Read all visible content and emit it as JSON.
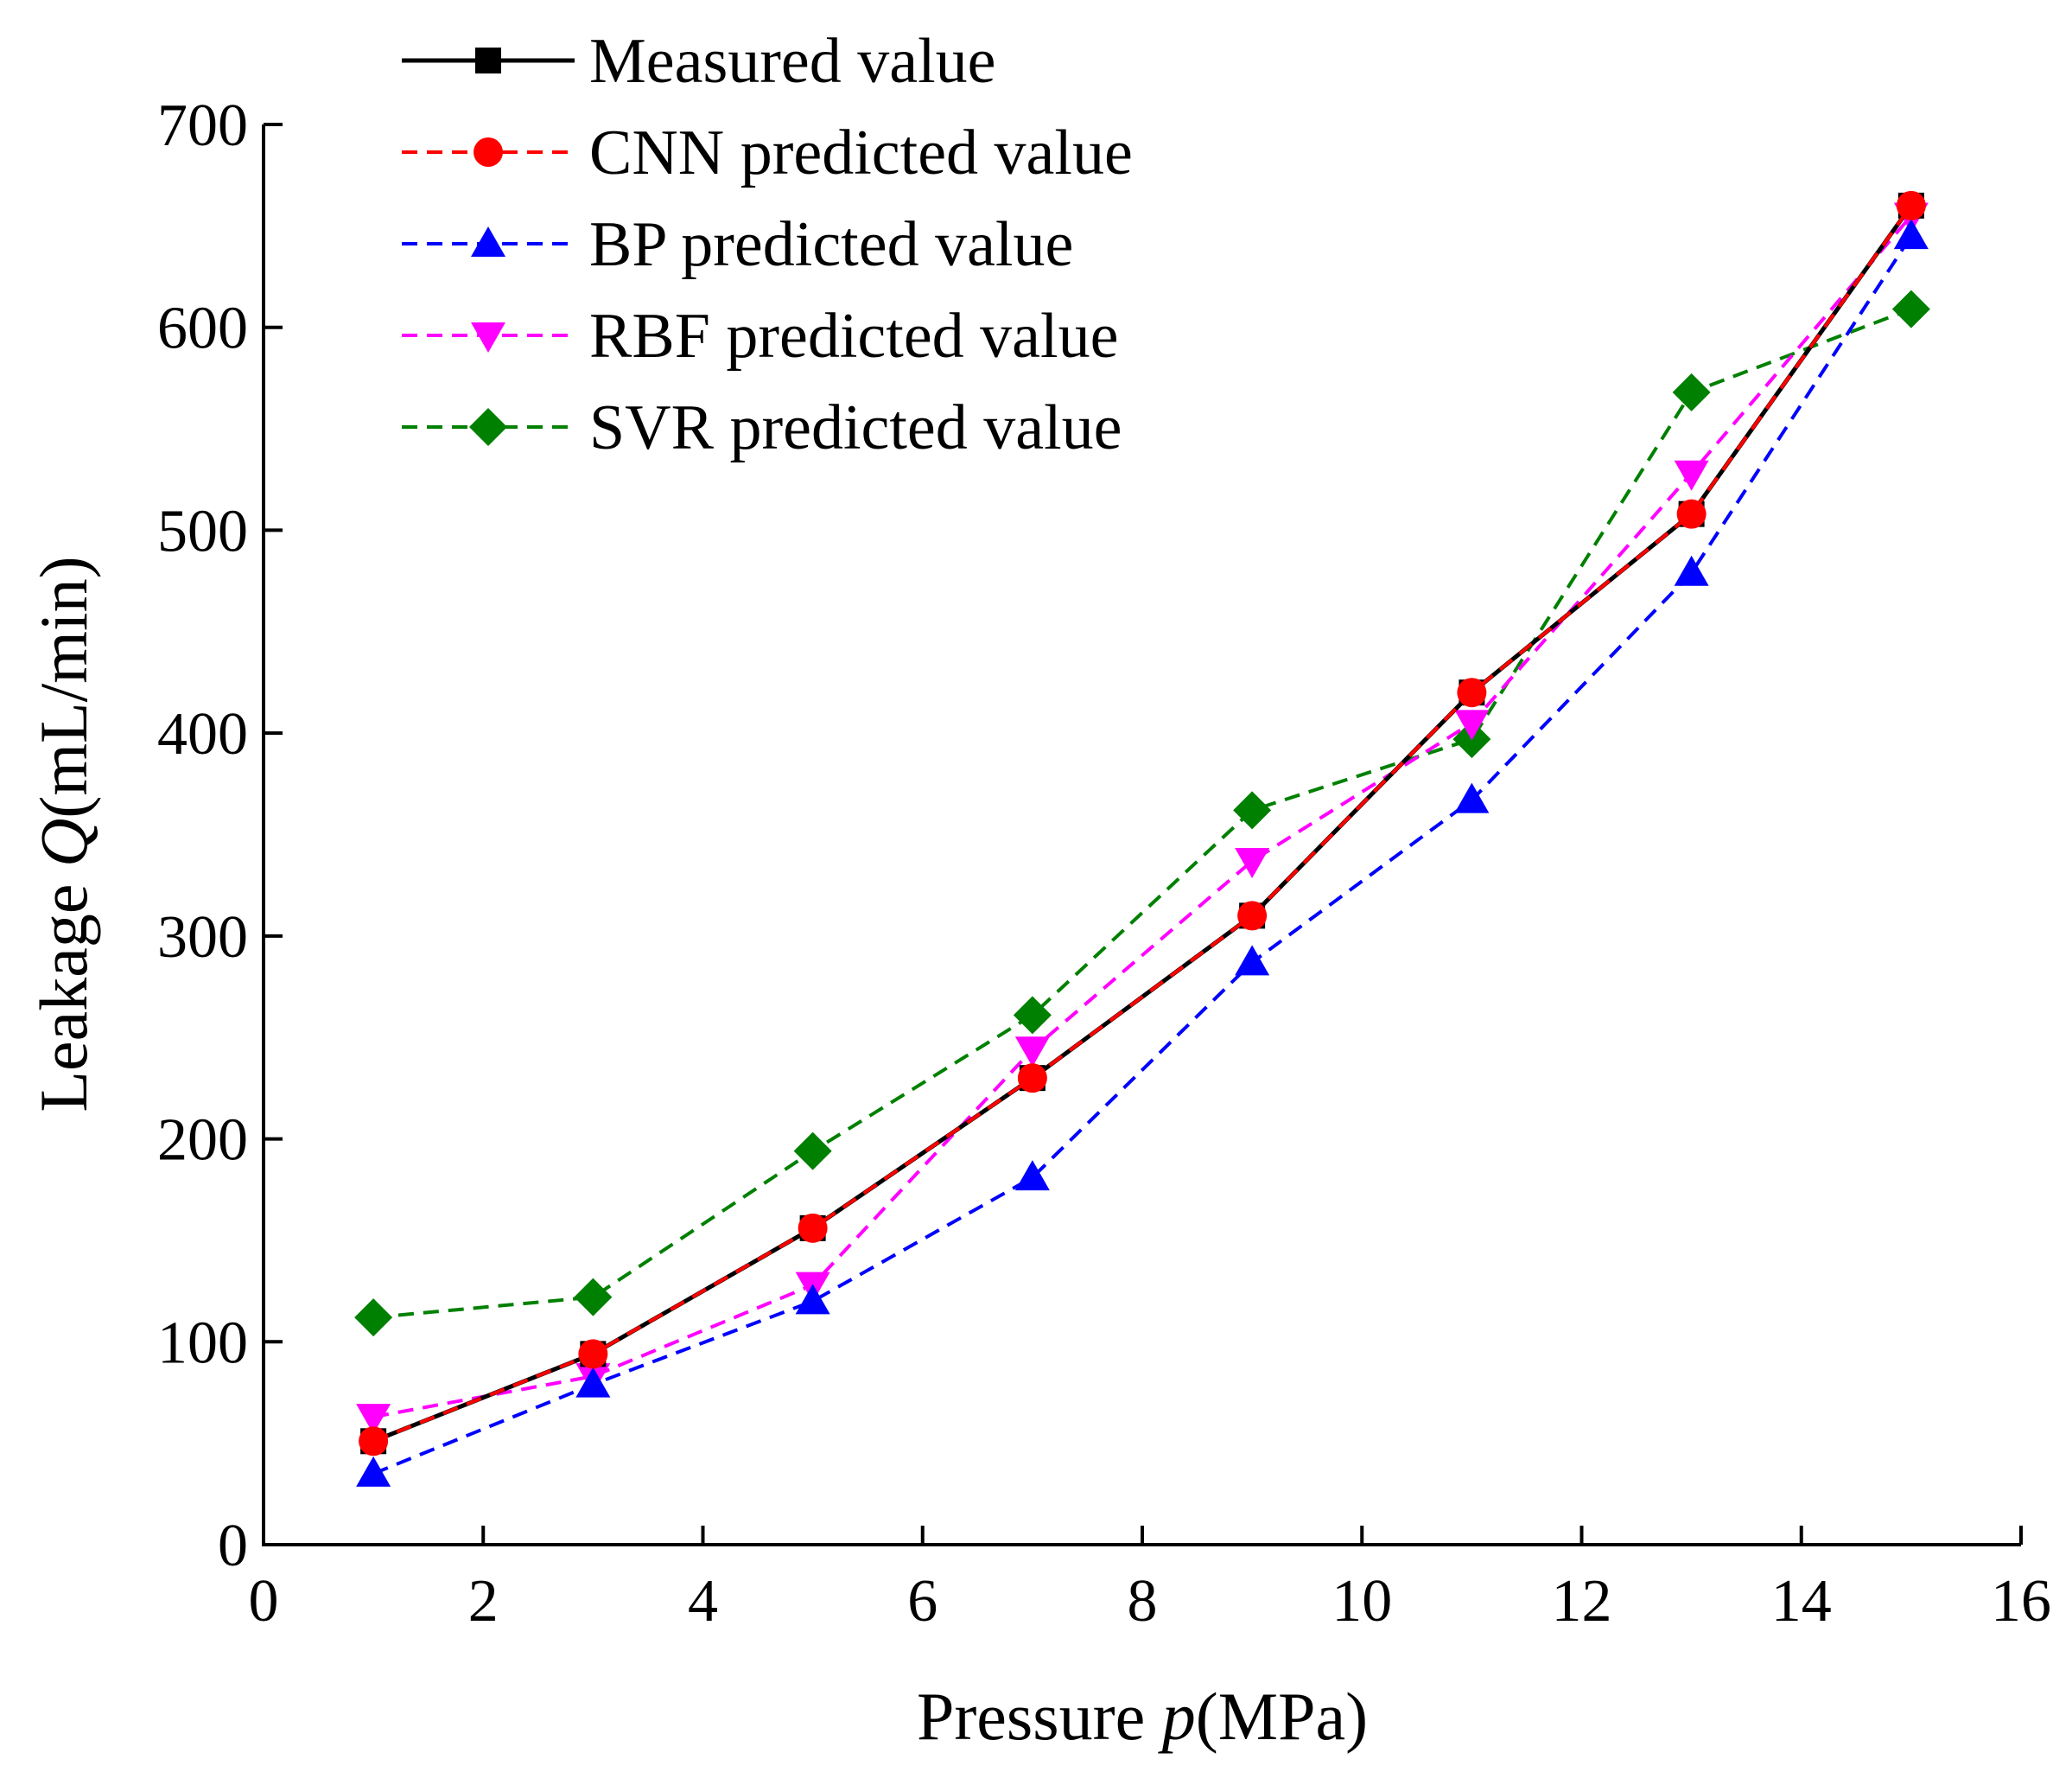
{
  "chart_data": {
    "type": "line",
    "title": "",
    "xlabel": {
      "prefix": "Pressure ",
      "var": "p",
      "suffix": "(MPa)"
    },
    "ylabel": {
      "prefix": "Leakage ",
      "var": "Q",
      "suffix": "(mL/min)"
    },
    "xlim": [
      0,
      16
    ],
    "ylim": [
      0,
      700
    ],
    "x_ticks": [
      "0",
      "2",
      "4",
      "6",
      "8",
      "10",
      "12",
      "14",
      "16"
    ],
    "y_ticks": [
      "0",
      "100",
      "200",
      "300",
      "400",
      "500",
      "600",
      "700"
    ],
    "grid": false,
    "legend_position": "top-left",
    "x": [
      1,
      3,
      5,
      7,
      9,
      11,
      13,
      15
    ],
    "series": [
      {
        "name": "Measured value",
        "color": "#000000",
        "marker": "square",
        "dash": "solid",
        "values": [
          51,
          94,
          156,
          230,
          310,
          420,
          508,
          660
        ]
      },
      {
        "name": "CNN predicted value",
        "color": "#ff0000",
        "marker": "circle",
        "dash": "dashed",
        "values": [
          51,
          94,
          156,
          230,
          310,
          420,
          508,
          660
        ]
      },
      {
        "name": "BP predicted value",
        "color": "#0000ff",
        "marker": "triangle-up",
        "dash": "dashed",
        "values": [
          35,
          79,
          120,
          181,
          287,
          367,
          479,
          645
        ]
      },
      {
        "name": "RBF predicted value",
        "color": "#ff00ff",
        "marker": "triangle-down",
        "dash": "dashed",
        "values": [
          63,
          83,
          128,
          244,
          337,
          405,
          528,
          655
        ]
      },
      {
        "name": "SVR predicted value",
        "color": "#008000",
        "marker": "diamond",
        "dash": "dashed",
        "values": [
          112,
          122,
          194,
          261,
          362,
          397,
          568,
          609
        ]
      }
    ]
  }
}
